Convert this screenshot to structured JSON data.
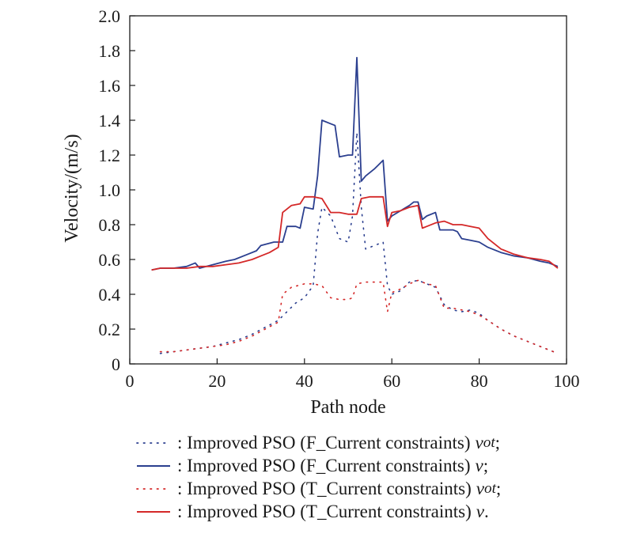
{
  "chart_data": {
    "type": "line",
    "title": "",
    "xlabel": "Path node",
    "ylabel": "Velocity/(m/s)",
    "xlim": [
      0,
      100
    ],
    "ylim": [
      0,
      2.0
    ],
    "xticks": [
      "0",
      "20",
      "40",
      "60",
      "80",
      "100"
    ],
    "yticks": [
      "0",
      "0.2",
      "0.4",
      "0.6",
      "0.8",
      "1.0",
      "1.2",
      "1.4",
      "1.6",
      "1.8",
      "2.0"
    ],
    "grid": false,
    "legend_position": "bottom",
    "series": [
      {
        "name": "F_Current constraints v_ot",
        "color": "#2b3f8f",
        "style": "dotted",
        "x": [
          7,
          10,
          13,
          16,
          19,
          22,
          25,
          28,
          31,
          34,
          36,
          38,
          40,
          42,
          43,
          44,
          46,
          48,
          50,
          51,
          52,
          53,
          54,
          56,
          58,
          59,
          60,
          62,
          64,
          66,
          68,
          70,
          72,
          74,
          76,
          78,
          80,
          82,
          85,
          88,
          91,
          94,
          96,
          98
        ],
        "y": [
          0.06,
          0.07,
          0.08,
          0.09,
          0.1,
          0.12,
          0.14,
          0.17,
          0.21,
          0.25,
          0.3,
          0.35,
          0.38,
          0.45,
          0.75,
          0.9,
          0.85,
          0.72,
          0.7,
          0.85,
          1.33,
          0.9,
          0.66,
          0.68,
          0.7,
          0.45,
          0.4,
          0.42,
          0.47,
          0.48,
          0.46,
          0.44,
          0.34,
          0.31,
          0.3,
          0.31,
          0.29,
          0.25,
          0.2,
          0.16,
          0.13,
          0.1,
          0.08,
          0.06
        ]
      },
      {
        "name": "F_Current constraints v",
        "color": "#2b3f8f",
        "style": "solid",
        "x": [
          5,
          7,
          10,
          13,
          15,
          16,
          19,
          22,
          24,
          27,
          29,
          30,
          33,
          35,
          36,
          38,
          39,
          40,
          42,
          43,
          44,
          46,
          47,
          48,
          50,
          51,
          52,
          53,
          54,
          56,
          58,
          59,
          60,
          62,
          64,
          65,
          66,
          67,
          68,
          70,
          71,
          72,
          74,
          75,
          76,
          78,
          80,
          82,
          85,
          88,
          91,
          94,
          96,
          98
        ],
        "y": [
          0.54,
          0.55,
          0.55,
          0.56,
          0.58,
          0.55,
          0.57,
          0.59,
          0.6,
          0.63,
          0.65,
          0.68,
          0.7,
          0.7,
          0.79,
          0.79,
          0.78,
          0.9,
          0.89,
          1.08,
          1.4,
          1.38,
          1.37,
          1.19,
          1.2,
          1.2,
          1.76,
          1.05,
          1.08,
          1.12,
          1.17,
          0.82,
          0.85,
          0.88,
          0.91,
          0.93,
          0.93,
          0.83,
          0.85,
          0.87,
          0.77,
          0.77,
          0.77,
          0.76,
          0.72,
          0.71,
          0.7,
          0.67,
          0.64,
          0.62,
          0.61,
          0.59,
          0.58,
          0.56
        ]
      },
      {
        "name": "T_Current constraints v_ot",
        "color": "#d42828",
        "style": "dotted",
        "x": [
          7,
          10,
          13,
          16,
          19,
          22,
          25,
          28,
          31,
          34,
          35,
          37,
          40,
          42,
          44,
          46,
          48,
          50,
          51,
          52,
          54,
          56,
          58,
          59,
          60,
          62,
          64,
          66,
          68,
          70,
          72,
          74,
          76,
          78,
          80,
          82,
          85,
          88,
          91,
          94,
          96,
          98
        ],
        "y": [
          0.07,
          0.07,
          0.08,
          0.09,
          0.1,
          0.11,
          0.13,
          0.16,
          0.2,
          0.24,
          0.4,
          0.44,
          0.46,
          0.46,
          0.45,
          0.38,
          0.37,
          0.37,
          0.38,
          0.46,
          0.47,
          0.47,
          0.47,
          0.3,
          0.41,
          0.43,
          0.46,
          0.48,
          0.46,
          0.45,
          0.32,
          0.32,
          0.31,
          0.3,
          0.28,
          0.25,
          0.2,
          0.16,
          0.13,
          0.1,
          0.08,
          0.06
        ]
      },
      {
        "name": "T_Current constraints v",
        "color": "#d42828",
        "style": "solid",
        "x": [
          5,
          7,
          10,
          13,
          16,
          19,
          22,
          25,
          28,
          30,
          32,
          34,
          35,
          37,
          39,
          40,
          42,
          44,
          46,
          48,
          50,
          52,
          53,
          55,
          57,
          58,
          59,
          60,
          62,
          64,
          66,
          67,
          68,
          70,
          72,
          74,
          76,
          78,
          80,
          82,
          85,
          88,
          91,
          94,
          96,
          98
        ],
        "y": [
          0.54,
          0.55,
          0.55,
          0.55,
          0.56,
          0.56,
          0.57,
          0.58,
          0.6,
          0.62,
          0.64,
          0.67,
          0.87,
          0.91,
          0.92,
          0.96,
          0.96,
          0.95,
          0.87,
          0.87,
          0.86,
          0.86,
          0.95,
          0.96,
          0.96,
          0.96,
          0.79,
          0.87,
          0.88,
          0.9,
          0.91,
          0.78,
          0.79,
          0.81,
          0.82,
          0.8,
          0.8,
          0.79,
          0.78,
          0.72,
          0.66,
          0.63,
          0.61,
          0.6,
          0.59,
          0.55
        ]
      }
    ]
  },
  "legend": [
    {
      "color": "#2b3f8f",
      "style": "dotted",
      "text": ": Improved PSO (F_Current constraints)",
      "var": "v",
      "sub": "ot",
      "end": ";"
    },
    {
      "color": "#2b3f8f",
      "style": "solid",
      "text": ": Improved PSO (F_Current constraints)",
      "var": "v",
      "sub": "",
      "end": ";"
    },
    {
      "color": "#d42828",
      "style": "dotted",
      "text": ": Improved PSO (T_Current constraints)",
      "var": "v",
      "sub": "ot",
      "end": ";"
    },
    {
      "color": "#d42828",
      "style": "solid",
      "text": ": Improved PSO (T_Current constraints)",
      "var": "v",
      "sub": "",
      "end": "."
    }
  ]
}
